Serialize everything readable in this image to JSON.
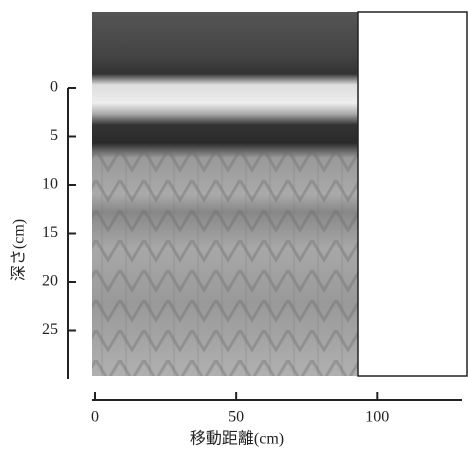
{
  "chart_data": {
    "type": "image",
    "x_label": "移動距離(cm)",
    "y_label": "深さ(cm)",
    "xlim": [
      0,
      130
    ],
    "xticks": [
      0,
      50,
      100
    ],
    "ylim": [
      0,
      30
    ],
    "yticks": [
      0,
      5,
      10,
      15,
      20,
      25
    ]
  }
}
